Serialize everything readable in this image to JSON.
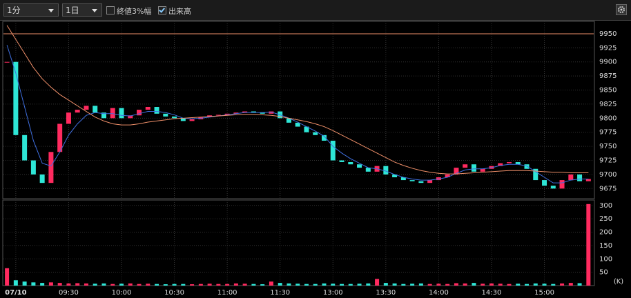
{
  "toolbar": {
    "interval": "1分",
    "range": "1日",
    "options": [
      {
        "label": "終値3%幅",
        "checked": false
      },
      {
        "label": "出来高",
        "checked": true
      }
    ]
  },
  "chart_data": {
    "type": "candlestick",
    "x": [
      -5,
      0,
      5,
      10,
      15,
      20,
      25,
      30,
      35,
      40,
      45,
      50,
      55,
      60,
      65,
      70,
      75,
      80,
      85,
      90,
      95,
      100,
      105,
      110,
      115,
      120,
      125,
      130,
      135,
      140,
      145,
      150,
      155,
      160,
      165,
      170,
      175,
      180,
      185,
      190,
      195,
      200,
      205,
      210,
      215,
      220,
      225,
      230,
      235,
      240,
      245,
      250,
      255,
      260,
      265,
      270,
      275,
      280,
      285,
      290,
      295,
      300,
      305,
      310,
      315,
      320,
      325
    ],
    "xlim": [
      -7,
      328
    ],
    "xticks": [
      {
        "value": 0,
        "label": "07/10"
      },
      {
        "value": 30,
        "label": "09:30"
      },
      {
        "value": 60,
        "label": "10:00"
      },
      {
        "value": 90,
        "label": "10:30"
      },
      {
        "value": 120,
        "label": "11:00"
      },
      {
        "value": 150,
        "label": "11:30"
      },
      {
        "value": 180,
        "label": "13:00"
      },
      {
        "value": 210,
        "label": "13:30"
      },
      {
        "value": 240,
        "label": "14:00"
      },
      {
        "value": 270,
        "label": "14:30"
      },
      {
        "value": 300,
        "label": "15:00"
      }
    ],
    "ylim": [
      9657,
      9972
    ],
    "yticks": [
      9675,
      9700,
      9725,
      9750,
      9775,
      9800,
      9825,
      9850,
      9875,
      9900,
      9925,
      9950
    ],
    "grid": true,
    "price": {
      "up_color": "#ff2a5f",
      "down_color": "#2ee6d6",
      "values": [
        9900,
        9770,
        9725,
        9700,
        9685,
        9740,
        9790,
        9810,
        9815,
        9822,
        9810,
        9800,
        9818,
        9800,
        9805,
        9815,
        9820,
        9808,
        9803,
        9800,
        9795,
        9798,
        9802,
        9805,
        9806,
        9808,
        9810,
        9812,
        9810,
        9808,
        9812,
        9800,
        9792,
        9785,
        9775,
        9770,
        9760,
        9725,
        9722,
        9718,
        9712,
        9705,
        9715,
        9700,
        9695,
        9690,
        9688,
        9685,
        9690,
        9695,
        9700,
        9712,
        9718,
        9705,
        9710,
        9715,
        9720,
        9722,
        9718,
        9710,
        9690,
        9680,
        9675,
        9690,
        9700,
        9688,
        9692
      ]
    },
    "moving_averages": [
      {
        "color": "#3f6fe0",
        "values": [
          9930,
          9880,
          9820,
          9760,
          9720,
          9715,
          9740,
          9770,
          9790,
          9805,
          9810,
          9808,
          9808,
          9805,
          9804,
          9808,
          9812,
          9812,
          9810,
          9806,
          9800,
          9799,
          9800,
          9802,
          9804,
          9806,
          9808,
          9810,
          9810,
          9810,
          9811,
          9806,
          9800,
          9793,
          9785,
          9777,
          9768,
          9750,
          9738,
          9728,
          9720,
          9712,
          9710,
          9706,
          9700,
          9695,
          9692,
          9690,
          9690,
          9692,
          9695,
          9702,
          9708,
          9710,
          9710,
          9712,
          9716,
          9718,
          9718,
          9715,
          9705,
          9695,
          9685,
          9685,
          9690,
          9692,
          9692
        ]
      },
      {
        "color": "#f0906a",
        "values": [
          9965,
          9940,
          9915,
          9890,
          9870,
          9855,
          9842,
          9832,
          9822,
          9812,
          9802,
          9795,
          9790,
          9788,
          9788,
          9790,
          9793,
          9795,
          9797,
          9799,
          9800,
          9801,
          9802,
          9803,
          9804,
          9805,
          9806,
          9807,
          9807,
          9806,
          9805,
          9803,
          9800,
          9797,
          9794,
          9790,
          9785,
          9778,
          9770,
          9762,
          9754,
          9746,
          9738,
          9730,
          9722,
          9716,
          9711,
          9707,
          9704,
          9702,
          9701,
          9701,
          9702,
          9703,
          9704,
          9705,
          9706,
          9707,
          9707,
          9707,
          9706,
          9705,
          9704,
          9704,
          9703,
          9703,
          9703
        ]
      }
    ],
    "reference_line": {
      "value": 9950,
      "color": "#f0906a"
    },
    "volume": {
      "unit": "(K)",
      "ylim": [
        0,
        320
      ],
      "yticks": [
        50,
        100,
        150,
        200,
        250,
        300
      ],
      "values": [
        65,
        20,
        15,
        12,
        10,
        12,
        10,
        8,
        9,
        8,
        7,
        8,
        6,
        7,
        8,
        6,
        7,
        6,
        5,
        6,
        6,
        5,
        6,
        7,
        6,
        6,
        8,
        7,
        6,
        5,
        15,
        10,
        8,
        7,
        6,
        6,
        8,
        7,
        6,
        6,
        7,
        8,
        25,
        10,
        8,
        6,
        7,
        8,
        6,
        7,
        6,
        9,
        8,
        10,
        7,
        8,
        7,
        6,
        7,
        6,
        8,
        7,
        6,
        8,
        10,
        9,
        305
      ]
    }
  }
}
